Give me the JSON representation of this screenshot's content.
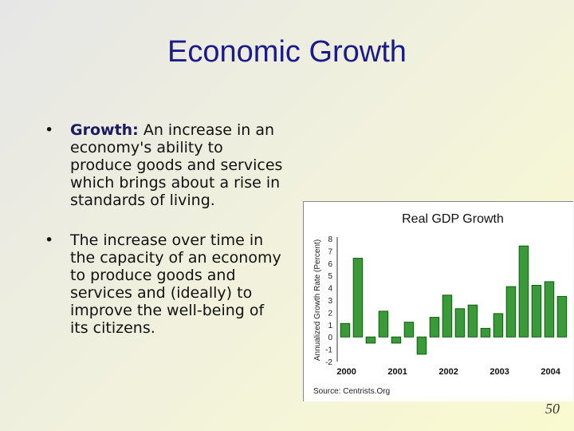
{
  "slide": {
    "title": "Economic Growth",
    "bullets": [
      {
        "term": "Growth:",
        "text": " An increase in an economy's ability to produce goods and services which brings about a rise in standards of living."
      },
      {
        "term": "",
        "text": "The increase over time in the capacity of an economy to produce goods and services and (ideally) to improve the well-being of its citizens."
      }
    ],
    "bullet_glyph": "•",
    "page_number": "50"
  },
  "chart_data": {
    "type": "bar",
    "title": "Real GDP Growth",
    "ylabel": "Annualized Growth Rate (Percent)",
    "xlabel": "",
    "source": "Source: Centrists.Org",
    "ylim": [
      -2,
      8
    ],
    "yticks": [
      "8",
      "7",
      "6",
      "5",
      "4",
      "3",
      "2",
      "1",
      "0",
      "-1",
      "-2"
    ],
    "xtick_labels": [
      "2000",
      "2001",
      "2002",
      "2003",
      "2004"
    ],
    "values": [
      1.1,
      6.4,
      -0.5,
      2.1,
      -0.5,
      1.2,
      -1.4,
      1.6,
      3.4,
      2.3,
      2.6,
      0.7,
      1.9,
      4.1,
      7.4,
      4.2,
      4.5,
      3.3
    ],
    "bar_color": "#3a9a3a",
    "bar_edge": "#0e5e0e"
  }
}
